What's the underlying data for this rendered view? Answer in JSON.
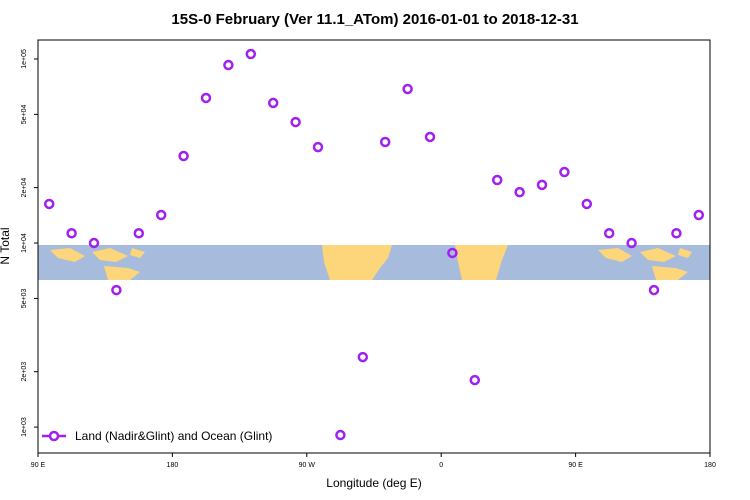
{
  "chart_data": {
    "type": "scatter",
    "log_y": true,
    "title": "15S-0 February (Ver 11.1_ATom)   2016-01-01 to 2018-12-31",
    "xlabel": "Longitude (deg E)",
    "ylabel": "N Total",
    "xlim": [
      90,
      540
    ],
    "ylim": [
      723,
      126800
    ],
    "xticks": [
      {
        "value": 90,
        "label": "90 E"
      },
      {
        "value": 180,
        "label": "180"
      },
      {
        "value": 270,
        "label": "90 W"
      },
      {
        "value": 360,
        "label": "0"
      },
      {
        "value": 450,
        "label": "90 E"
      },
      {
        "value": 540,
        "label": "180"
      }
    ],
    "yticks": [
      {
        "value": 1000,
        "label": "1e+03"
      },
      {
        "value": 2000,
        "label": "2e+03"
      },
      {
        "value": 5000,
        "label": "5e+03"
      },
      {
        "value": 10000,
        "label": "1e+04"
      },
      {
        "value": 20000,
        "label": "2e+04"
      },
      {
        "value": 50000,
        "label": "5e+04"
      },
      {
        "value": 100000,
        "label": "1e+05"
      }
    ],
    "legend_position": "bottom-left",
    "series": [
      {
        "name": "Land (Nadir&Glint) and Ocean (Glint)",
        "color": "#a020f0",
        "x": [
          97.5,
          112.5,
          127.5,
          142.5,
          157.5,
          172.5,
          187.5,
          202.5,
          217.5,
          232.5,
          247.5,
          262.5,
          277.5,
          292.5,
          307.5,
          322.5,
          337.5,
          352.5,
          367.5,
          382.5,
          397.5,
          412.5,
          427.5,
          442.5,
          457.5,
          472.5,
          487.5,
          502.5,
          517.5,
          532.5
        ],
        "values": [
          16300,
          11300,
          10000,
          5550,
          11300,
          14200,
          29700,
          61400,
          92700,
          106400,
          57700,
          45400,
          33200,
          905,
          2400,
          35400,
          68700,
          37700,
          8830,
          1800,
          22000,
          18900,
          20700,
          24300,
          16300,
          11300,
          10000,
          5550,
          11300,
          14200
        ]
      }
    ]
  }
}
